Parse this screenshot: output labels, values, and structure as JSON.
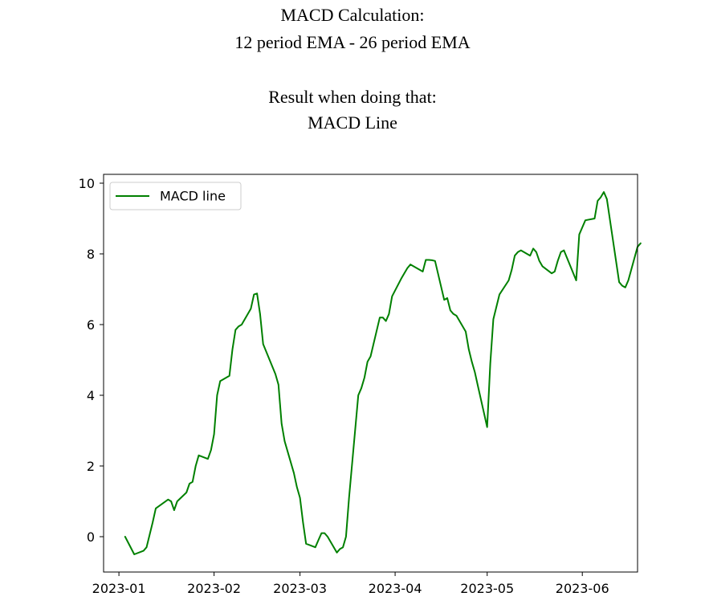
{
  "heading": {
    "line1": "MACD Calculation:",
    "line2": "12 period EMA - 26 period EMA",
    "line3": "Result when doing that:",
    "line4": "MACD Line"
  },
  "chart_data": {
    "type": "line",
    "legend": {
      "position": "top-left",
      "entries": [
        "MACD line"
      ]
    },
    "grid": false,
    "xlim": [
      "2022-12-27",
      "2023-06-19"
    ],
    "ylim": [
      -1.0,
      10.25
    ],
    "x_ticks": [
      "2023-01",
      "2023-02",
      "2023-03",
      "2023-04",
      "2023-05",
      "2023-06"
    ],
    "y_ticks": [
      0,
      2,
      4,
      6,
      8,
      10
    ],
    "series": [
      {
        "name": "MACD line",
        "color": "#008000",
        "points": [
          [
            "2023-01-03",
            0.0
          ],
          [
            "2023-01-06",
            -0.5
          ],
          [
            "2023-01-09",
            -0.4
          ],
          [
            "2023-01-10",
            -0.3
          ],
          [
            "2023-01-12",
            0.4
          ],
          [
            "2023-01-13",
            0.8
          ],
          [
            "2023-01-17",
            1.05
          ],
          [
            "2023-01-18",
            1.0
          ],
          [
            "2023-01-19",
            0.75
          ],
          [
            "2023-01-20",
            1.0
          ],
          [
            "2023-01-23",
            1.25
          ],
          [
            "2023-01-24",
            1.5
          ],
          [
            "2023-01-25",
            1.55
          ],
          [
            "2023-01-26",
            2.0
          ],
          [
            "2023-01-27",
            2.3
          ],
          [
            "2023-01-30",
            2.2
          ],
          [
            "2023-01-31",
            2.45
          ],
          [
            "2023-02-01",
            2.9
          ],
          [
            "2023-02-02",
            4.0
          ],
          [
            "2023-02-03",
            4.4
          ],
          [
            "2023-02-06",
            4.55
          ],
          [
            "2023-02-07",
            5.3
          ],
          [
            "2023-02-08",
            5.85
          ],
          [
            "2023-02-09",
            5.95
          ],
          [
            "2023-02-10",
            6.0
          ],
          [
            "2023-02-13",
            6.45
          ],
          [
            "2023-02-14",
            6.85
          ],
          [
            "2023-02-15",
            6.88
          ],
          [
            "2023-02-16",
            6.3
          ],
          [
            "2023-02-17",
            5.45
          ],
          [
            "2023-02-21",
            4.6
          ],
          [
            "2023-02-22",
            4.3
          ],
          [
            "2023-02-23",
            3.2
          ],
          [
            "2023-02-24",
            2.7
          ],
          [
            "2023-02-27",
            1.8
          ],
          [
            "2023-02-28",
            1.4
          ],
          [
            "2023-03-01",
            1.1
          ],
          [
            "2023-03-02",
            0.4
          ],
          [
            "2023-03-03",
            -0.2
          ],
          [
            "2023-03-06",
            -0.3
          ],
          [
            "2023-03-07",
            -0.1
          ],
          [
            "2023-03-08",
            0.1
          ],
          [
            "2023-03-09",
            0.1
          ],
          [
            "2023-03-10",
            0.0
          ],
          [
            "2023-03-13",
            -0.45
          ],
          [
            "2023-03-14",
            -0.35
          ],
          [
            "2023-03-15",
            -0.3
          ],
          [
            "2023-03-16",
            0.0
          ],
          [
            "2023-03-17",
            1.1
          ],
          [
            "2023-03-20",
            4.0
          ],
          [
            "2023-03-21",
            4.2
          ],
          [
            "2023-03-22",
            4.5
          ],
          [
            "2023-03-23",
            4.95
          ],
          [
            "2023-03-24",
            5.1
          ],
          [
            "2023-03-27",
            6.2
          ],
          [
            "2023-03-28",
            6.2
          ],
          [
            "2023-03-29",
            6.1
          ],
          [
            "2023-03-30",
            6.3
          ],
          [
            "2023-03-31",
            6.8
          ],
          [
            "2023-04-03",
            7.3
          ],
          [
            "2023-04-04",
            7.45
          ],
          [
            "2023-04-05",
            7.6
          ],
          [
            "2023-04-06",
            7.7
          ],
          [
            "2023-04-10",
            7.5
          ],
          [
            "2023-04-11",
            7.83
          ],
          [
            "2023-04-12",
            7.83
          ],
          [
            "2023-04-13",
            7.82
          ],
          [
            "2023-04-14",
            7.8
          ],
          [
            "2023-04-17",
            6.7
          ],
          [
            "2023-04-18",
            6.75
          ],
          [
            "2023-04-19",
            6.4
          ],
          [
            "2023-04-20",
            6.3
          ],
          [
            "2023-04-21",
            6.25
          ],
          [
            "2023-04-24",
            5.8
          ],
          [
            "2023-04-25",
            5.3
          ],
          [
            "2023-04-26",
            4.95
          ],
          [
            "2023-04-27",
            4.65
          ],
          [
            "2023-04-28",
            4.25
          ],
          [
            "2023-05-01",
            3.1
          ],
          [
            "2023-05-02",
            4.9
          ],
          [
            "2023-05-03",
            6.15
          ],
          [
            "2023-05-04",
            6.5
          ],
          [
            "2023-05-05",
            6.85
          ],
          [
            "2023-05-08",
            7.25
          ],
          [
            "2023-05-09",
            7.55
          ],
          [
            "2023-05-10",
            7.95
          ],
          [
            "2023-05-11",
            8.05
          ],
          [
            "2023-05-12",
            8.1
          ],
          [
            "2023-05-15",
            7.95
          ],
          [
            "2023-05-16",
            8.15
          ],
          [
            "2023-05-17",
            8.05
          ],
          [
            "2023-05-18",
            7.8
          ],
          [
            "2023-05-19",
            7.65
          ],
          [
            "2023-05-22",
            7.45
          ],
          [
            "2023-05-23",
            7.5
          ],
          [
            "2023-05-24",
            7.8
          ],
          [
            "2023-05-25",
            8.05
          ],
          [
            "2023-05-26",
            8.1
          ],
          [
            "2023-05-30",
            7.25
          ],
          [
            "2023-05-31",
            8.55
          ],
          [
            "2023-06-01",
            8.75
          ],
          [
            "2023-06-02",
            8.95
          ],
          [
            "2023-06-05",
            9.0
          ],
          [
            "2023-06-06",
            9.5
          ],
          [
            "2023-06-07",
            9.6
          ],
          [
            "2023-06-08",
            9.75
          ],
          [
            "2023-06-09",
            9.55
          ],
          [
            "2023-06-12",
            7.8
          ],
          [
            "2023-06-13",
            7.2
          ],
          [
            "2023-06-14",
            7.1
          ],
          [
            "2023-06-15",
            7.05
          ],
          [
            "2023-06-16",
            7.25
          ],
          [
            "2023-06-19",
            8.2
          ],
          [
            "2023-06-20",
            8.3
          ]
        ]
      }
    ]
  }
}
